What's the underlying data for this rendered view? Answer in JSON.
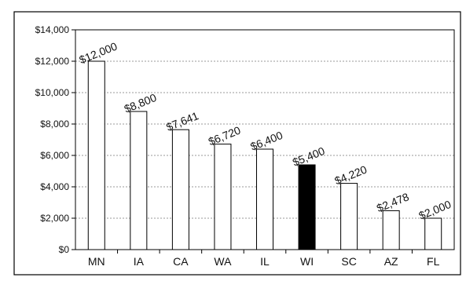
{
  "chart_data": {
    "type": "bar",
    "categories": [
      "MN",
      "IA",
      "CA",
      "WA",
      "IL",
      "WI",
      "SC",
      "AZ",
      "FL"
    ],
    "values": [
      12000,
      8800,
      7641,
      6720,
      6400,
      5400,
      4220,
      2478,
      2000
    ],
    "data_labels": [
      "$12,000",
      "$8,800",
      "$7,641",
      "$6,720",
      "$6,400",
      "$5,400",
      "$4,220",
      "$2,478",
      "$2,000"
    ],
    "ylim": [
      0,
      14000
    ],
    "yticks": [
      0,
      2000,
      4000,
      6000,
      8000,
      10000,
      12000,
      14000
    ],
    "ytick_labels": [
      "$0",
      "$2,000",
      "$4,000",
      "$6,000",
      "$8,000",
      "$10,000",
      "$12,000",
      "$14,000"
    ],
    "highlighted_category": "WI",
    "grid": true,
    "title": "",
    "xlabel": "",
    "ylabel": "",
    "colors": {
      "bar_fill": "#ffffff",
      "highlight_fill": "#000000",
      "bar_stroke": "#000000",
      "grid": "#777777"
    }
  }
}
